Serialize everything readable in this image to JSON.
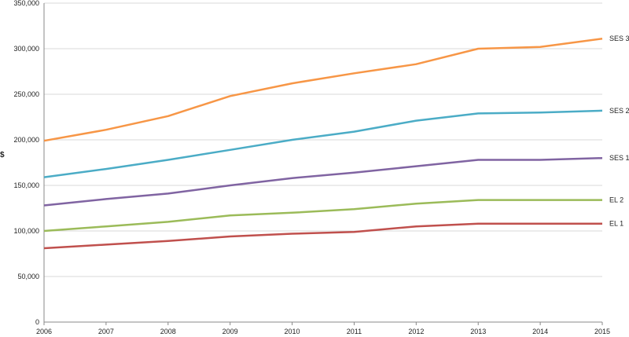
{
  "chart_data": {
    "type": "line",
    "title": "",
    "xlabel": "",
    "ylabel": "$",
    "ylim": [
      0,
      350000
    ],
    "yticks": [
      0,
      50000,
      100000,
      150000,
      200000,
      250000,
      300000,
      350000
    ],
    "ytick_labels": [
      "0",
      "50,000",
      "100,000",
      "150,000",
      "200,000",
      "250,000",
      "300,000",
      "350,000"
    ],
    "x": [
      "2006",
      "2007",
      "2008",
      "2009",
      "2010",
      "2011",
      "2012",
      "2013",
      "2014",
      "2015"
    ],
    "grid": "horizontal",
    "legend": "inline labels at right end of each line",
    "series": [
      {
        "name": "SES 3",
        "color": "#F79646",
        "values": [
          199000,
          211000,
          226000,
          248000,
          262000,
          273000,
          283000,
          300000,
          302000,
          311000
        ]
      },
      {
        "name": "SES 2",
        "color": "#4BACC6",
        "values": [
          159000,
          168000,
          178000,
          189000,
          200000,
          209000,
          221000,
          229000,
          230000,
          232000
        ]
      },
      {
        "name": "SES 1",
        "color": "#8064A2",
        "values": [
          128000,
          135000,
          141000,
          150000,
          158000,
          164000,
          171000,
          178000,
          178000,
          180000
        ]
      },
      {
        "name": "EL 2",
        "color": "#9BBB59",
        "values": [
          100000,
          105000,
          110000,
          117000,
          120000,
          124000,
          130000,
          134000,
          134000,
          134000
        ]
      },
      {
        "name": "EL 1",
        "color": "#C0504D",
        "values": [
          81000,
          85000,
          89000,
          94000,
          97000,
          99000,
          105000,
          108000,
          108000,
          108000
        ]
      }
    ]
  }
}
